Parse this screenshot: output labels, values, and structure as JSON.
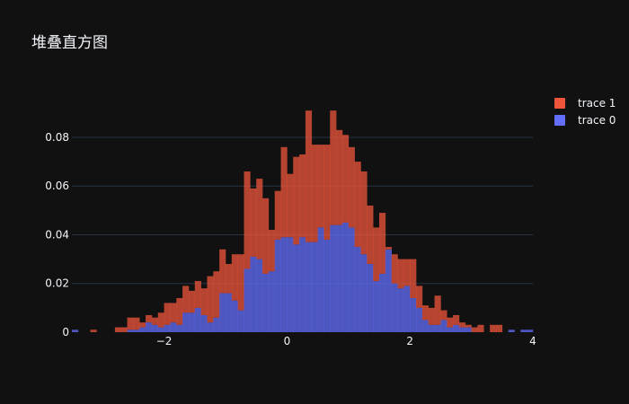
{
  "chart_data": {
    "type": "histogram-stacked",
    "title": "堆叠直方图",
    "xlabel": "",
    "ylabel": "",
    "xlim": [
      -3.5,
      4
    ],
    "ylim": [
      0,
      0.094
    ],
    "bin_start": -3.5,
    "bin_width": 0.1,
    "x_ticks": [
      -2,
      0,
      2,
      4
    ],
    "x_tick_labels": [
      "−2",
      "0",
      "2",
      "4"
    ],
    "y_ticks": [
      0,
      0.02,
      0.04,
      0.06,
      0.08
    ],
    "y_tick_labels": [
      "0",
      "0.02",
      "0.04",
      "0.06",
      "0.08"
    ],
    "grid": true,
    "legend_position": "top-right",
    "series": [
      {
        "name": "trace 0",
        "color": "#636efa",
        "values": [
          0.001,
          0,
          0,
          0,
          0,
          0,
          0,
          0,
          0,
          0.001,
          0.001,
          0.002,
          0.004,
          0.003,
          0.002,
          0.003,
          0.004,
          0.003,
          0.008,
          0.008,
          0.01,
          0.007,
          0.004,
          0.006,
          0.016,
          0.016,
          0.013,
          0.009,
          0.026,
          0.031,
          0.03,
          0.024,
          0.025,
          0.038,
          0.039,
          0.039,
          0.036,
          0.039,
          0.037,
          0.037,
          0.043,
          0.038,
          0.044,
          0.044,
          0.045,
          0.043,
          0.035,
          0.032,
          0.028,
          0.021,
          0.024,
          0.034,
          0.02,
          0.018,
          0.019,
          0.014,
          0.01,
          0.005,
          0.003,
          0.003,
          0.005,
          0.002,
          0.003,
          0.002,
          0.002,
          0,
          0,
          0,
          0,
          0,
          0,
          0.001,
          0,
          0.001,
          0.001
        ]
      },
      {
        "name": "trace 1",
        "color": "#ef553b",
        "values": [
          0,
          0,
          0,
          0.001,
          0,
          0,
          0,
          0.002,
          0.002,
          0.005,
          0.005,
          0.002,
          0.003,
          0.003,
          0.006,
          0.009,
          0.008,
          0.011,
          0.011,
          0.009,
          0.011,
          0.011,
          0.019,
          0.019,
          0.018,
          0.012,
          0.019,
          0.023,
          0.04,
          0.028,
          0.033,
          0.031,
          0.017,
          0.02,
          0.037,
          0.026,
          0.036,
          0.034,
          0.054,
          0.04,
          0.034,
          0.039,
          0.047,
          0.039,
          0.036,
          0.033,
          0.035,
          0.034,
          0.024,
          0.022,
          0.025,
          0.001,
          0.012,
          0.012,
          0.011,
          0.016,
          0.009,
          0.006,
          0.007,
          0.012,
          0.004,
          0.004,
          0.004,
          0.002,
          0.001,
          0.002,
          0.003,
          0,
          0.003,
          0.003,
          0,
          0,
          0,
          0,
          0
        ]
      }
    ]
  }
}
